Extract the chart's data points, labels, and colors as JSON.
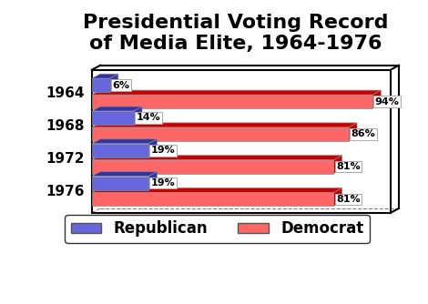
{
  "title": "Presidential Voting Record\nof Media Elite, 1964-1976",
  "years": [
    "1964",
    "1968",
    "1972",
    "1976"
  ],
  "republican": [
    6,
    14,
    19,
    19
  ],
  "democrat": [
    94,
    86,
    81,
    81
  ],
  "rep_color_front": "#6666dd",
  "rep_color_top": "#3333aa",
  "dem_color_front": "#ff6666",
  "dem_color_top": "#cc0000",
  "bg_color": "#ffffff",
  "title_fontsize": 16,
  "tick_fontsize": 11,
  "legend_fontsize": 12
}
